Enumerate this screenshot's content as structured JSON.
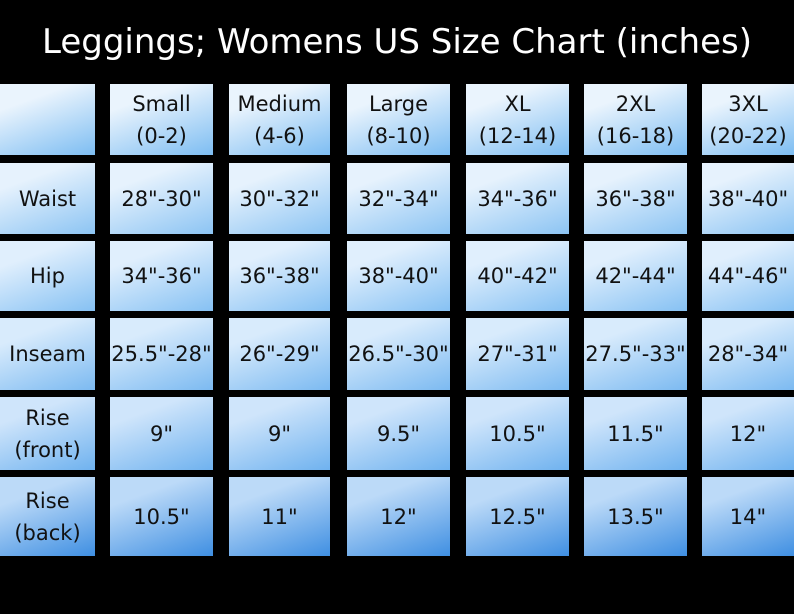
{
  "title": "Leggings; Womens US Size Chart (inches)",
  "table": {
    "columns": [
      {
        "name": "Small",
        "range": "(0-2)"
      },
      {
        "name": "Medium",
        "range": "(4-6)"
      },
      {
        "name": "Large",
        "range": "(8-10)"
      },
      {
        "name": "XL",
        "range": "(12-14)"
      },
      {
        "name": "2XL",
        "range": "(16-18)"
      },
      {
        "name": "3XL",
        "range": "(20-22)"
      }
    ],
    "rows": [
      {
        "label": [
          "Waist"
        ],
        "values": [
          "28\"-30\"",
          "30\"-32\"",
          "32\"-34\"",
          "34\"-36\"",
          "36\"-38\"",
          "38\"-40\""
        ]
      },
      {
        "label": [
          "Hip"
        ],
        "values": [
          "34\"-36\"",
          "36\"-38\"",
          "38\"-40\"",
          "40\"-42\"",
          "42\"-44\"",
          "44\"-46\""
        ]
      },
      {
        "label": [
          "Inseam"
        ],
        "values": [
          "25.5\"-28\"",
          "26\"-29\"",
          "26.5\"-30\"",
          "27\"-31\"",
          "27.5\"-33\"",
          "28\"-34\""
        ]
      },
      {
        "label": [
          "Rise",
          "(front)"
        ],
        "values": [
          "9\"",
          "9\"",
          "9.5\"",
          "10.5\"",
          "11.5\"",
          "12\""
        ]
      },
      {
        "label": [
          "Rise",
          "(back)"
        ],
        "values": [
          "10.5\"",
          "11\"",
          "12\"",
          "12.5\"",
          "13.5\"",
          "14\""
        ]
      }
    ]
  }
}
